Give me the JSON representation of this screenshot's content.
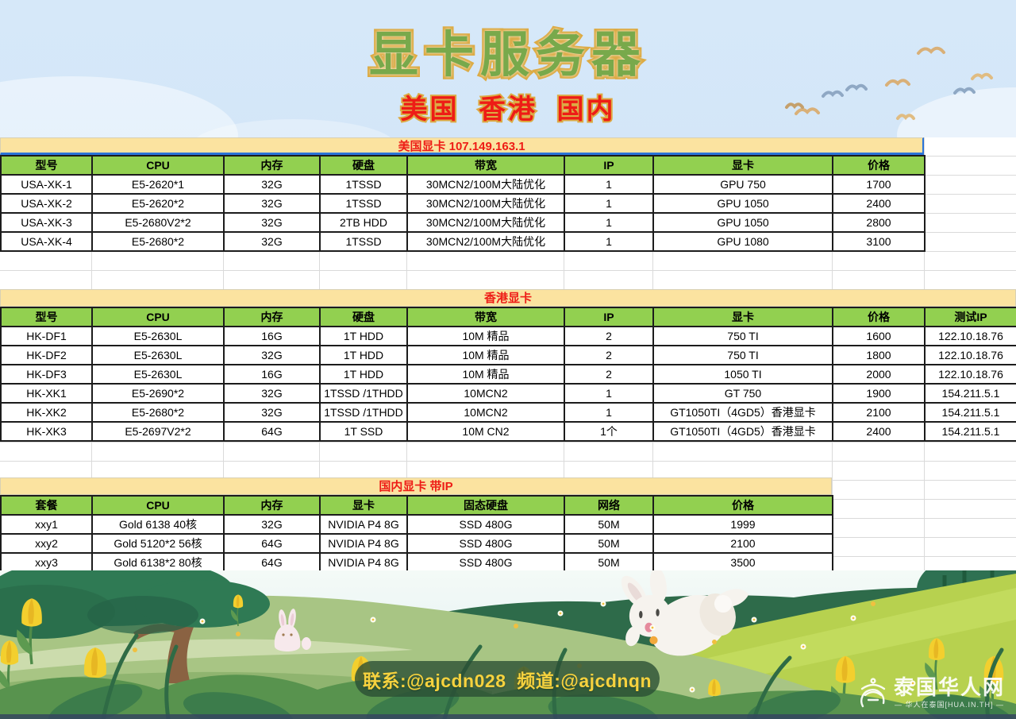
{
  "title": "显卡服务器",
  "subtitle": "美国 香港 国内",
  "tables": [
    {
      "title": "美国显卡 107.149.163.1",
      "headers": [
        "型号",
        "CPU",
        "内存",
        "硬盘",
        "带宽",
        "IP",
        "显卡",
        "价格"
      ],
      "rows": [
        [
          "USA-XK-1",
          "E5-2620*1",
          "32G",
          "1TSSD",
          "30MCN2/100M大陆优化",
          "1",
          "GPU 750",
          "1700"
        ],
        [
          "USA-XK-2",
          "E5-2620*2",
          "32G",
          "1TSSD",
          "30MCN2/100M大陆优化",
          "1",
          "GPU 1050",
          "2400"
        ],
        [
          "USA-XK-3",
          "E5-2680V2*2",
          "32G",
          "2TB HDD",
          "30MCN2/100M大陆优化",
          "1",
          "GPU 1050",
          "2800"
        ],
        [
          "USA-XK-4",
          "E5-2680*2",
          "32G",
          "1TSSD",
          "30MCN2/100M大陆优化",
          "1",
          "GPU 1080",
          "3100"
        ]
      ]
    },
    {
      "title": "香港显卡",
      "headers": [
        "型号",
        "CPU",
        "内存",
        "硬盘",
        "带宽",
        "IP",
        "显卡",
        "价格",
        "测试IP"
      ],
      "rows": [
        [
          "HK-DF1",
          "E5-2630L",
          "16G",
          "1T HDD",
          "10M 精品",
          "2",
          "750 TI",
          "1600",
          "122.10.18.76"
        ],
        [
          "HK-DF2",
          "E5-2630L",
          "32G",
          "1T HDD",
          "10M 精品",
          "2",
          "750 TI",
          "1800",
          "122.10.18.76"
        ],
        [
          "HK-DF3",
          "E5-2630L",
          "16G",
          "1T HDD",
          "10M 精品",
          "2",
          "1050 TI",
          "2000",
          "122.10.18.76"
        ],
        [
          "HK-XK1",
          "E5-2690*2",
          "32G",
          "1TSSD /1THDD",
          "10MCN2",
          "1",
          "GT 750",
          "1900",
          "154.211.5.1"
        ],
        [
          "HK-XK2",
          "E5-2680*2",
          "32G",
          "1TSSD /1THDD",
          "10MCN2",
          "1",
          "GT1050TI（4GD5）香港显卡",
          "2100",
          "154.211.5.1"
        ],
        [
          "HK-XK3",
          "E5-2697V2*2",
          "64G",
          "1T SSD",
          "10M CN2",
          "1个",
          "GT1050TI（4GD5）香港显卡",
          "2400",
          "154.211.5.1"
        ]
      ]
    },
    {
      "title": "国内显卡 带IP",
      "headers": [
        "套餐",
        "CPU",
        "内存",
        "显卡",
        "固态硬盘",
        "网络",
        "价格"
      ],
      "rows": [
        [
          "xxy1",
          "Gold 6138 40核",
          "32G",
          "NVIDIA P4 8G",
          "SSD 480G",
          "50M",
          "1999"
        ],
        [
          "xxy2",
          "Gold 5120*2 56核",
          "64G",
          "NVIDIA P4 8G",
          "SSD 480G",
          "50M",
          "2100"
        ],
        [
          "xxy3",
          "Gold 6138*2 80核",
          "64G",
          "NVIDIA P4 8G",
          "SSD 480G",
          "50M",
          "3500"
        ]
      ]
    }
  ],
  "footer": {
    "contact": "联系:@ajcdn028  频道:@ajcdnqn"
  },
  "watermark": {
    "name": "泰国华人网",
    "tagline": "— 华人在泰国[HUA.IN.TH] —"
  },
  "colors": {
    "header_green": "#92d050",
    "bar_yellow": "#fbe3a0",
    "accent_red": "#ee1c16",
    "title_green": "#78a94b",
    "title_outline_gold": "#dcab44",
    "selection_blue": "#2b74d9"
  }
}
